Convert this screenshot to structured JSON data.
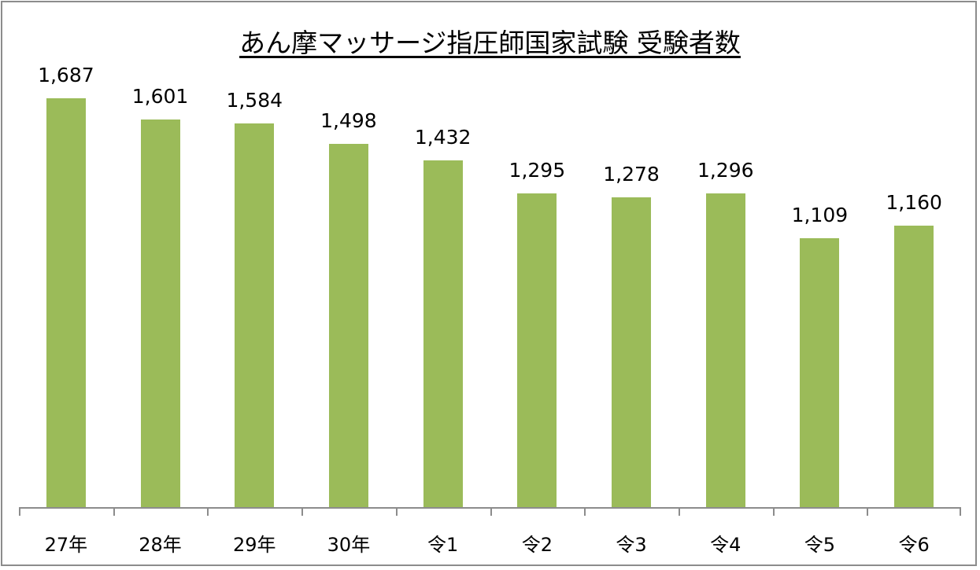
{
  "chart_data": {
    "type": "bar",
    "title": "あん摩マッサージ指圧師国家試験 受験者数",
    "categories": [
      "27年",
      "28年",
      "29年",
      "30年",
      "令1",
      "令2",
      "令3",
      "令4",
      "令5",
      "令6"
    ],
    "values": [
      1687,
      1601,
      1584,
      1498,
      1432,
      1295,
      1278,
      1296,
      1109,
      1160
    ],
    "value_labels": [
      "1,687",
      "1,601",
      "1,584",
      "1,498",
      "1,432",
      "1,295",
      "1,278",
      "1,296",
      "1,109",
      "1,160"
    ],
    "xlabel": "",
    "ylabel": "",
    "ylim": [
      0,
      1687
    ],
    "grid": false,
    "legend": "none",
    "bar_color": "#9bbb59"
  }
}
